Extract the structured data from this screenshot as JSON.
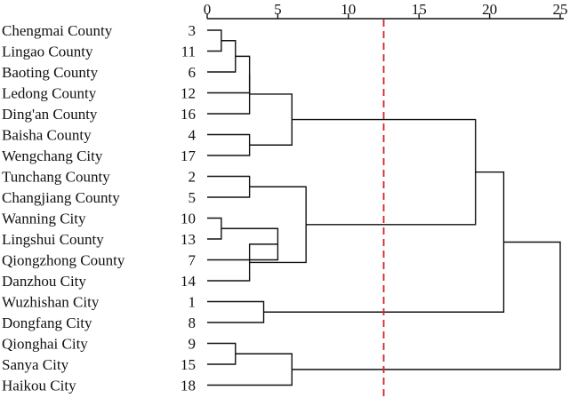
{
  "chart_data": {
    "type": "dendrogram",
    "title": "",
    "x_ticks": [
      0,
      5,
      10,
      15,
      20,
      25
    ],
    "x_range": [
      0,
      25
    ],
    "cut_line": {
      "value": 12.5,
      "color": "#d62728",
      "style": "dashed"
    },
    "leaves": [
      {
        "name": "Chengmai County",
        "id": "3"
      },
      {
        "name": "Lingao County",
        "id": "11"
      },
      {
        "name": "Baoting County",
        "id": "6"
      },
      {
        "name": "Ledong County",
        "id": "12"
      },
      {
        "name": "Ding'an County",
        "id": "16"
      },
      {
        "name": "Baisha County",
        "id": "4"
      },
      {
        "name": "Wengchang City",
        "id": "17"
      },
      {
        "name": "Tunchang County",
        "id": "2"
      },
      {
        "name": "Changjiang County",
        "id": "5"
      },
      {
        "name": "Wanning City",
        "id": "10"
      },
      {
        "name": "Lingshui County",
        "id": "13"
      },
      {
        "name": "Qiongzhong County",
        "id": "7"
      },
      {
        "name": "Danzhou City",
        "id": "14"
      },
      {
        "name": "Wuzhishan City",
        "id": "1"
      },
      {
        "name": "Dongfang City",
        "id": "8"
      },
      {
        "name": "Qionghai City",
        "id": "9"
      },
      {
        "name": "Sanya City",
        "id": "15"
      },
      {
        "name": "Haikou City",
        "id": "18"
      }
    ],
    "merges": [
      {
        "a": "L0",
        "b": "L1",
        "height": 1
      },
      {
        "a": "M0",
        "b": "L2",
        "height": 2
      },
      {
        "a": "M1",
        "b": "L3",
        "height": 3
      },
      {
        "a": "M2",
        "b": "L4",
        "height": 3
      },
      {
        "a": "L5",
        "b": "L6",
        "height": 3
      },
      {
        "a": "M3",
        "b": "M4",
        "height": 6
      },
      {
        "a": "L7",
        "b": "L8",
        "height": 3
      },
      {
        "a": "L9",
        "b": "L10",
        "height": 1
      },
      {
        "a": "M7",
        "b": "L11",
        "height": 5
      },
      {
        "a": "M8",
        "b": "L12",
        "height": 3
      },
      {
        "a": "M6",
        "b": "M9",
        "height": 7
      },
      {
        "a": "M5",
        "b": "M10",
        "height": 19
      },
      {
        "a": "L13",
        "b": "L14",
        "height": 4
      },
      {
        "a": "M11",
        "b": "M12",
        "height": 21
      },
      {
        "a": "L15",
        "b": "L16",
        "height": 2
      },
      {
        "a": "M14",
        "b": "L17",
        "height": 6
      },
      {
        "a": "M13",
        "b": "M15",
        "height": 25
      }
    ]
  }
}
